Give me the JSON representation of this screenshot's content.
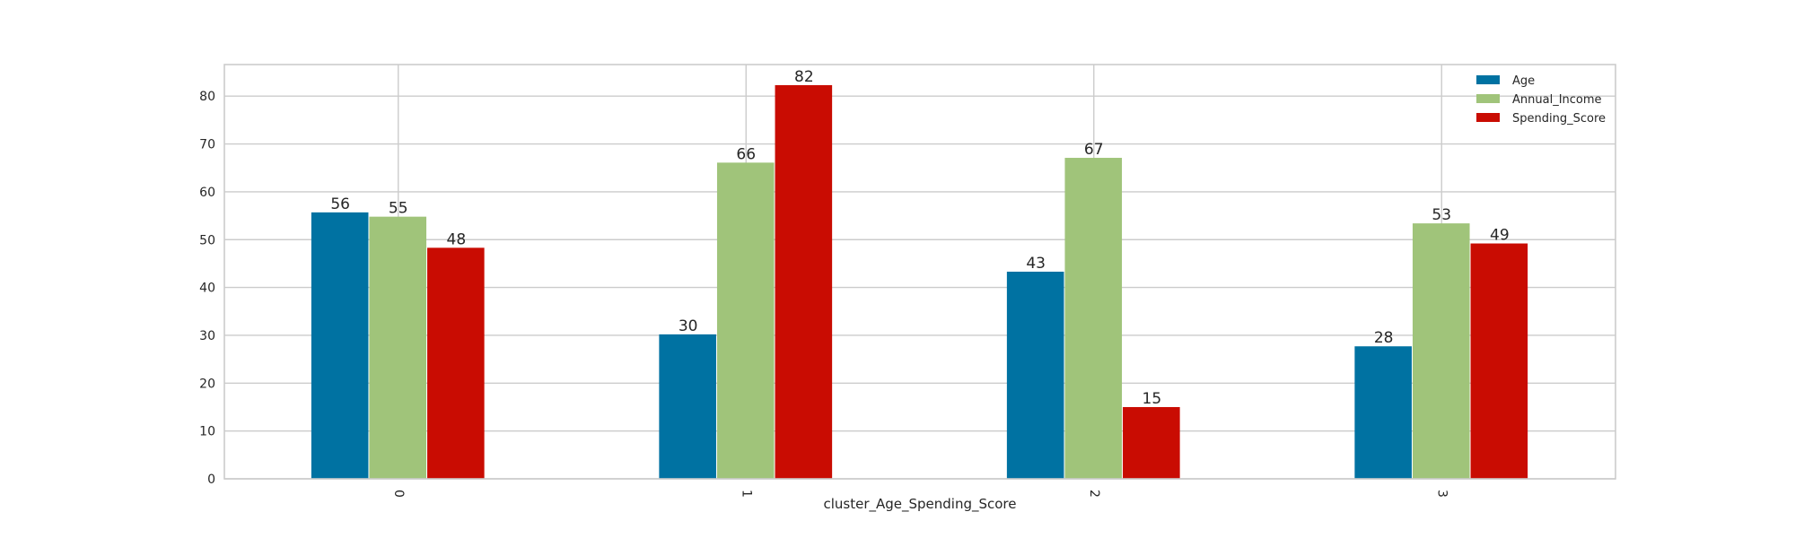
{
  "chart_data": {
    "type": "bar",
    "categories": [
      "0",
      "1",
      "2",
      "3"
    ],
    "series": [
      {
        "name": "Age",
        "values": [
          56,
          30,
          43,
          28
        ],
        "color": "#0072a2"
      },
      {
        "name": "Annual_Income",
        "values": [
          55,
          66,
          67,
          53
        ],
        "color": "#a0c47a"
      },
      {
        "name": "Spending_Score",
        "values": [
          48,
          82,
          15,
          49
        ],
        "color": "#c90c02"
      }
    ],
    "exact_values": {
      "Age": [
        55.7,
        30.2,
        43.3,
        27.7
      ],
      "Annual_Income": [
        54.8,
        66.1,
        67.1,
        53.4
      ],
      "Spending_Score": [
        48.3,
        82.3,
        15.0,
        49.2
      ]
    },
    "xlabel": "cluster_Age_Spending_Score",
    "ylabel": "",
    "ylim": [
      0,
      86.6
    ],
    "yticks": [
      0,
      10,
      20,
      30,
      40,
      50,
      60,
      70,
      80
    ],
    "grid": true,
    "legend_position": "top-right",
    "xtick_rotation": "vertical"
  }
}
